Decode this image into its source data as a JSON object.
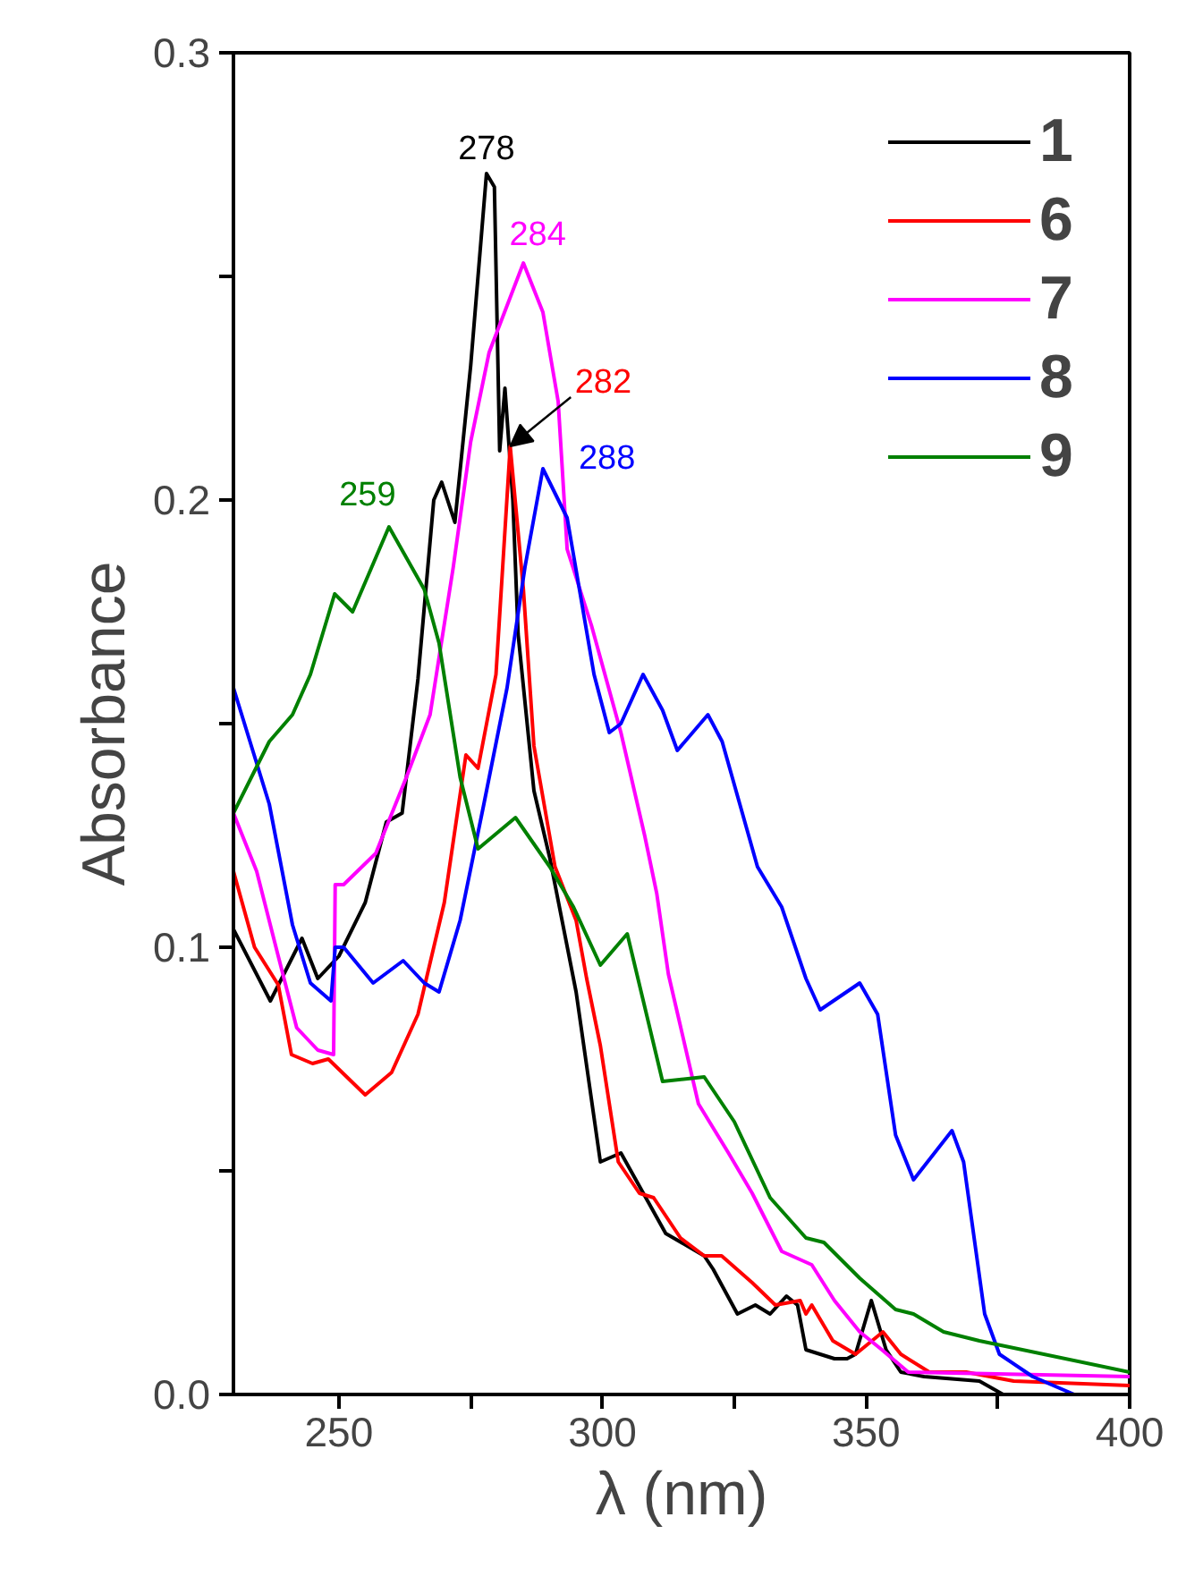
{
  "chart_data": {
    "type": "line",
    "xlabel": "λ (nm)",
    "ylabel": "Absorbance",
    "xlim": [
      230,
      400
    ],
    "ylim": [
      0,
      0.3
    ],
    "xticks": [
      250,
      {
        "value": 275,
        "label": null
      },
      300,
      {
        "value": 325,
        "label": null
      },
      350,
      {
        "value": 375,
        "label": null
      },
      400
    ],
    "yticks": [
      {
        "value": 0,
        "label": "0.0"
      },
      {
        "value": 0.05,
        "label": null
      },
      {
        "value": 0.1,
        "label": "0.1"
      },
      {
        "value": 0.15,
        "label": null
      },
      {
        "value": 0.2,
        "label": "0.2"
      },
      {
        "value": 0.25,
        "label": null
      },
      {
        "value": 0.3,
        "label": "0.3"
      }
    ],
    "grid": false,
    "legend": "top right",
    "marker": "none",
    "line_style": "solid",
    "series": [
      {
        "name": "1",
        "color": "#000000",
        "x": [
          230,
          237,
          243,
          246,
          250,
          255,
          259,
          262,
          265,
          268,
          269.5,
          272,
          275,
          278,
          279.5,
          280.5,
          281.5,
          283,
          284,
          287,
          290,
          295,
          299.6,
          303.5,
          312,
          319.3,
          321,
          325.6,
          329,
          331.8,
          334.9,
          337,
          338.6,
          344,
          346.4,
          348,
          351,
          353.8,
          356.6,
          361,
          371.5,
          376
        ],
        "values": [
          0.104,
          0.088,
          0.102,
          0.093,
          0.098,
          0.11,
          0.128,
          0.13,
          0.16,
          0.2,
          0.204,
          0.195,
          0.23,
          0.273,
          0.27,
          0.211,
          0.225,
          0.2,
          0.17,
          0.135,
          0.12,
          0.09,
          0.052,
          0.054,
          0.036,
          0.031,
          0.028,
          0.018,
          0.02,
          0.018,
          0.022,
          0.02,
          0.01,
          0.008,
          0.008,
          0.009,
          0.021,
          0.01,
          0.005,
          0.004,
          0.003,
          0.0
        ]
      },
      {
        "name": "6",
        "color": "#ff0000",
        "x": [
          230,
          234,
          238.5,
          241,
          245,
          248,
          255,
          260,
          265,
          270,
          274.1,
          276.4,
          279.8,
          282.5,
          285,
          287,
          291,
          295,
          297,
          299.6,
          303,
          307,
          309.7,
          314.8,
          319.3,
          322.6,
          328.4,
          332.8,
          337.5,
          338.6,
          339.7,
          343.7,
          348,
          353.2,
          356.6,
          362,
          369,
          378,
          400
        ],
        "values": [
          0.117,
          0.1,
          0.0916,
          0.076,
          0.074,
          0.075,
          0.067,
          0.072,
          0.085,
          0.11,
          0.143,
          0.14,
          0.161,
          0.212,
          0.18,
          0.145,
          0.118,
          0.106,
          0.093,
          0.078,
          0.052,
          0.045,
          0.044,
          0.035,
          0.031,
          0.031,
          0.025,
          0.02,
          0.021,
          0.018,
          0.02,
          0.012,
          0.009,
          0.014,
          0.009,
          0.005,
          0.005,
          0.003,
          0.002
        ]
      },
      {
        "name": "7",
        "color": "#ff00ff",
        "x": [
          230,
          234.4,
          238.5,
          242,
          246,
          249,
          249.3,
          250.9,
          257,
          262.8,
          267.3,
          271.7,
          275,
          278.5,
          285,
          288.7,
          291.6,
          293.3,
          297.9,
          303.5,
          308,
          310.3,
          312.5,
          318.2,
          323.9,
          328.4,
          334,
          339.7,
          344,
          348.8,
          353,
          358,
          400
        ],
        "values": [
          0.13,
          0.117,
          0.098,
          0.082,
          0.077,
          0.076,
          0.114,
          0.114,
          0.121,
          0.138,
          0.152,
          0.185,
          0.213,
          0.233,
          0.253,
          0.242,
          0.222,
          0.189,
          0.172,
          0.148,
          0.125,
          0.112,
          0.094,
          0.065,
          0.054,
          0.045,
          0.032,
          0.029,
          0.021,
          0.014,
          0.01,
          0.005,
          0.004
        ]
      },
      {
        "name": "8",
        "color": "#0000ff",
        "x": [
          230,
          236.8,
          241.2,
          244.6,
          248.5,
          249.3,
          250.9,
          256.5,
          262.2,
          266.2,
          269,
          273,
          277.5,
          281.9,
          285.3,
          288.7,
          293.3,
          298.4,
          301.3,
          303.5,
          307.7,
          311.4,
          314.2,
          320,
          322.7,
          329.4,
          334,
          338.6,
          341.3,
          348.8,
          352.2,
          355.6,
          359,
          366.3,
          368.5,
          372.5,
          375.3,
          381.6,
          389.5,
          400
        ],
        "values": [
          0.158,
          0.132,
          0.105,
          0.092,
          0.088,
          0.1,
          0.1,
          0.092,
          0.097,
          0.092,
          0.09,
          0.106,
          0.132,
          0.158,
          0.185,
          0.207,
          0.196,
          0.161,
          0.148,
          0.15,
          0.161,
          0.153,
          0.144,
          0.152,
          0.146,
          0.118,
          0.109,
          0.093,
          0.086,
          0.092,
          0.085,
          0.058,
          0.048,
          0.059,
          0.052,
          0.018,
          0.009,
          0.004,
          0.0,
          0.0
        ]
      },
      {
        "name": "9",
        "color": "#008000",
        "x": [
          230,
          236.8,
          241.2,
          244.6,
          249.2,
          252.6,
          259.5,
          266.2,
          269,
          273,
          276.4,
          283.5,
          290,
          294.5,
          299.6,
          304.7,
          311.4,
          319.3,
          325,
          331.8,
          338.6,
          342,
          348.8,
          355.6,
          359,
          364.7,
          371.5,
          400
        ],
        "values": [
          0.13,
          0.146,
          0.152,
          0.161,
          0.179,
          0.175,
          0.194,
          0.18,
          0.168,
          0.138,
          0.122,
          0.129,
          0.118,
          0.109,
          0.096,
          0.103,
          0.07,
          0.071,
          0.061,
          0.044,
          0.035,
          0.034,
          0.026,
          0.019,
          0.018,
          0.014,
          0.012,
          0.005
        ]
      }
    ],
    "annotations": [
      {
        "text": "278",
        "x": 278,
        "y": 0.273
      },
      {
        "text": "284",
        "x": 285,
        "y": 0.253
      },
      {
        "text": "282",
        "x": 282.5,
        "y": 0.212
      },
      {
        "text": "288",
        "x": 288.7,
        "y": 0.207
      },
      {
        "text": "259",
        "x": 259.5,
        "y": 0.194
      }
    ]
  }
}
